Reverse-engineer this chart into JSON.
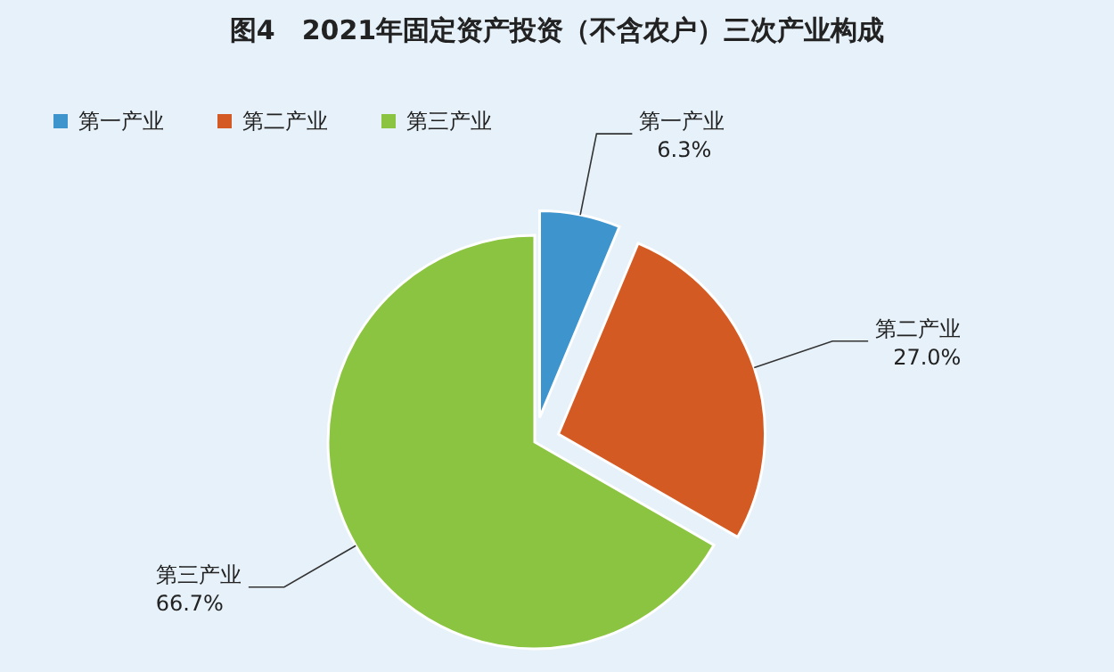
{
  "chart_data": {
    "type": "pie",
    "title": "图4　2021年固定资产投资（不含农户）三次产业构成",
    "categories": [
      "第一产业",
      "第二产业",
      "第三产业"
    ],
    "values": [
      6.3,
      27.0,
      66.7
    ],
    "colors": [
      "#3e94cc",
      "#d45a24",
      "#8bc441"
    ],
    "value_labels": [
      "6.3%",
      "27.0%",
      "66.7%"
    ],
    "legend": "top left"
  }
}
